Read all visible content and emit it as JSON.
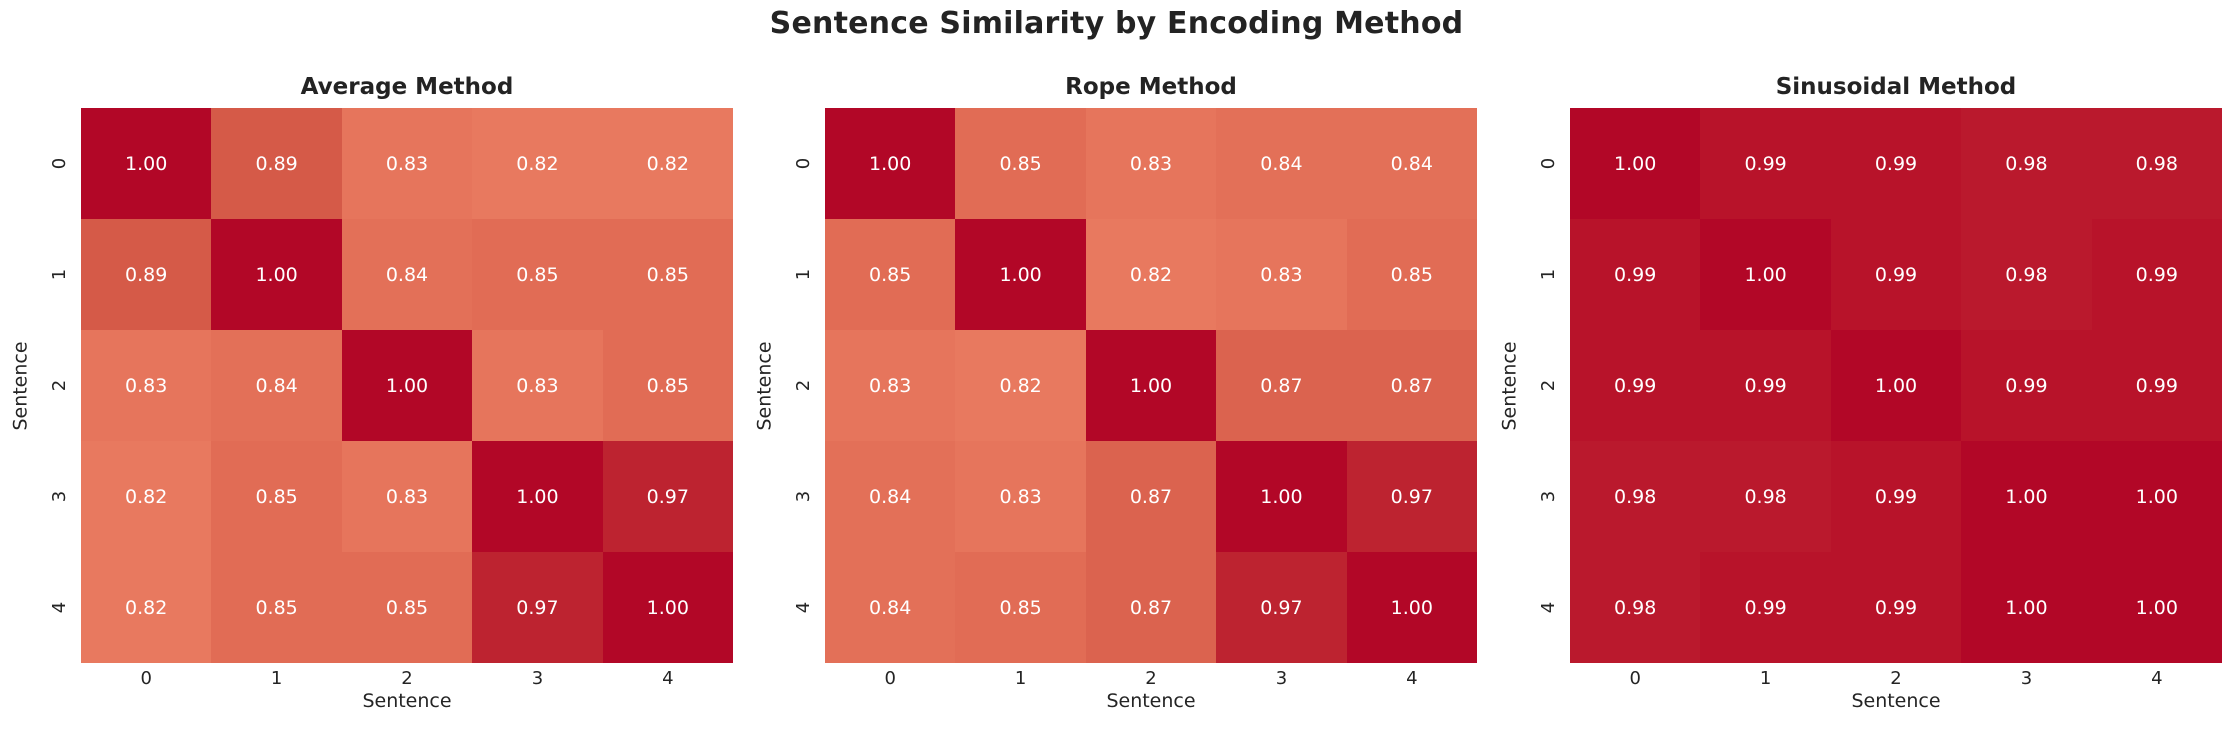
{
  "figure_title": "Sentence Similarity by Encoding Method",
  "colors": {
    "background": "#ffffff",
    "text": "#242424",
    "annotation_text": "#ffffff",
    "colormap_anchors": [
      [
        0.82,
        "#e8795f"
      ],
      [
        0.85,
        "#e16c55"
      ],
      [
        0.89,
        "#d55a48"
      ],
      [
        0.97,
        "#bd2330"
      ],
      [
        0.98,
        "#ba192d"
      ],
      [
        0.99,
        "#b8132a"
      ],
      [
        1.0,
        "#b20727"
      ]
    ]
  },
  "chart_data": [
    {
      "type": "heatmap",
      "title": "Average Method",
      "xlabel": "Sentence",
      "ylabel": "Sentence",
      "x_ticks": [
        "0",
        "1",
        "2",
        "3",
        "4"
      ],
      "y_ticks": [
        "0",
        "1",
        "2",
        "3",
        "4"
      ],
      "value_range": [
        0.82,
        1.0
      ],
      "values": [
        [
          1.0,
          0.89,
          0.83,
          0.82,
          0.82
        ],
        [
          0.89,
          1.0,
          0.84,
          0.85,
          0.85
        ],
        [
          0.83,
          0.84,
          1.0,
          0.83,
          0.85
        ],
        [
          0.82,
          0.85,
          0.83,
          1.0,
          0.97
        ],
        [
          0.82,
          0.85,
          0.85,
          0.97,
          1.0
        ]
      ]
    },
    {
      "type": "heatmap",
      "title": "Rope Method",
      "xlabel": "Sentence",
      "ylabel": "Sentence",
      "x_ticks": [
        "0",
        "1",
        "2",
        "3",
        "4"
      ],
      "y_ticks": [
        "0",
        "1",
        "2",
        "3",
        "4"
      ],
      "value_range": [
        0.82,
        1.0
      ],
      "values": [
        [
          1.0,
          0.85,
          0.83,
          0.84,
          0.84
        ],
        [
          0.85,
          1.0,
          0.82,
          0.83,
          0.85
        ],
        [
          0.83,
          0.82,
          1.0,
          0.87,
          0.87
        ],
        [
          0.84,
          0.83,
          0.87,
          1.0,
          0.97
        ],
        [
          0.84,
          0.85,
          0.87,
          0.97,
          1.0
        ]
      ]
    },
    {
      "type": "heatmap",
      "title": "Sinusoidal Method",
      "xlabel": "Sentence",
      "ylabel": "Sentence",
      "x_ticks": [
        "0",
        "1",
        "2",
        "3",
        "4"
      ],
      "y_ticks": [
        "0",
        "1",
        "2",
        "3",
        "4"
      ],
      "value_range": [
        0.82,
        1.0
      ],
      "values": [
        [
          1.0,
          0.99,
          0.99,
          0.98,
          0.98
        ],
        [
          0.99,
          1.0,
          0.99,
          0.98,
          0.99
        ],
        [
          0.99,
          0.99,
          1.0,
          0.99,
          0.99
        ],
        [
          0.98,
          0.98,
          0.99,
          1.0,
          1.0
        ],
        [
          0.98,
          0.99,
          0.99,
          1.0,
          1.0
        ]
      ]
    }
  ]
}
